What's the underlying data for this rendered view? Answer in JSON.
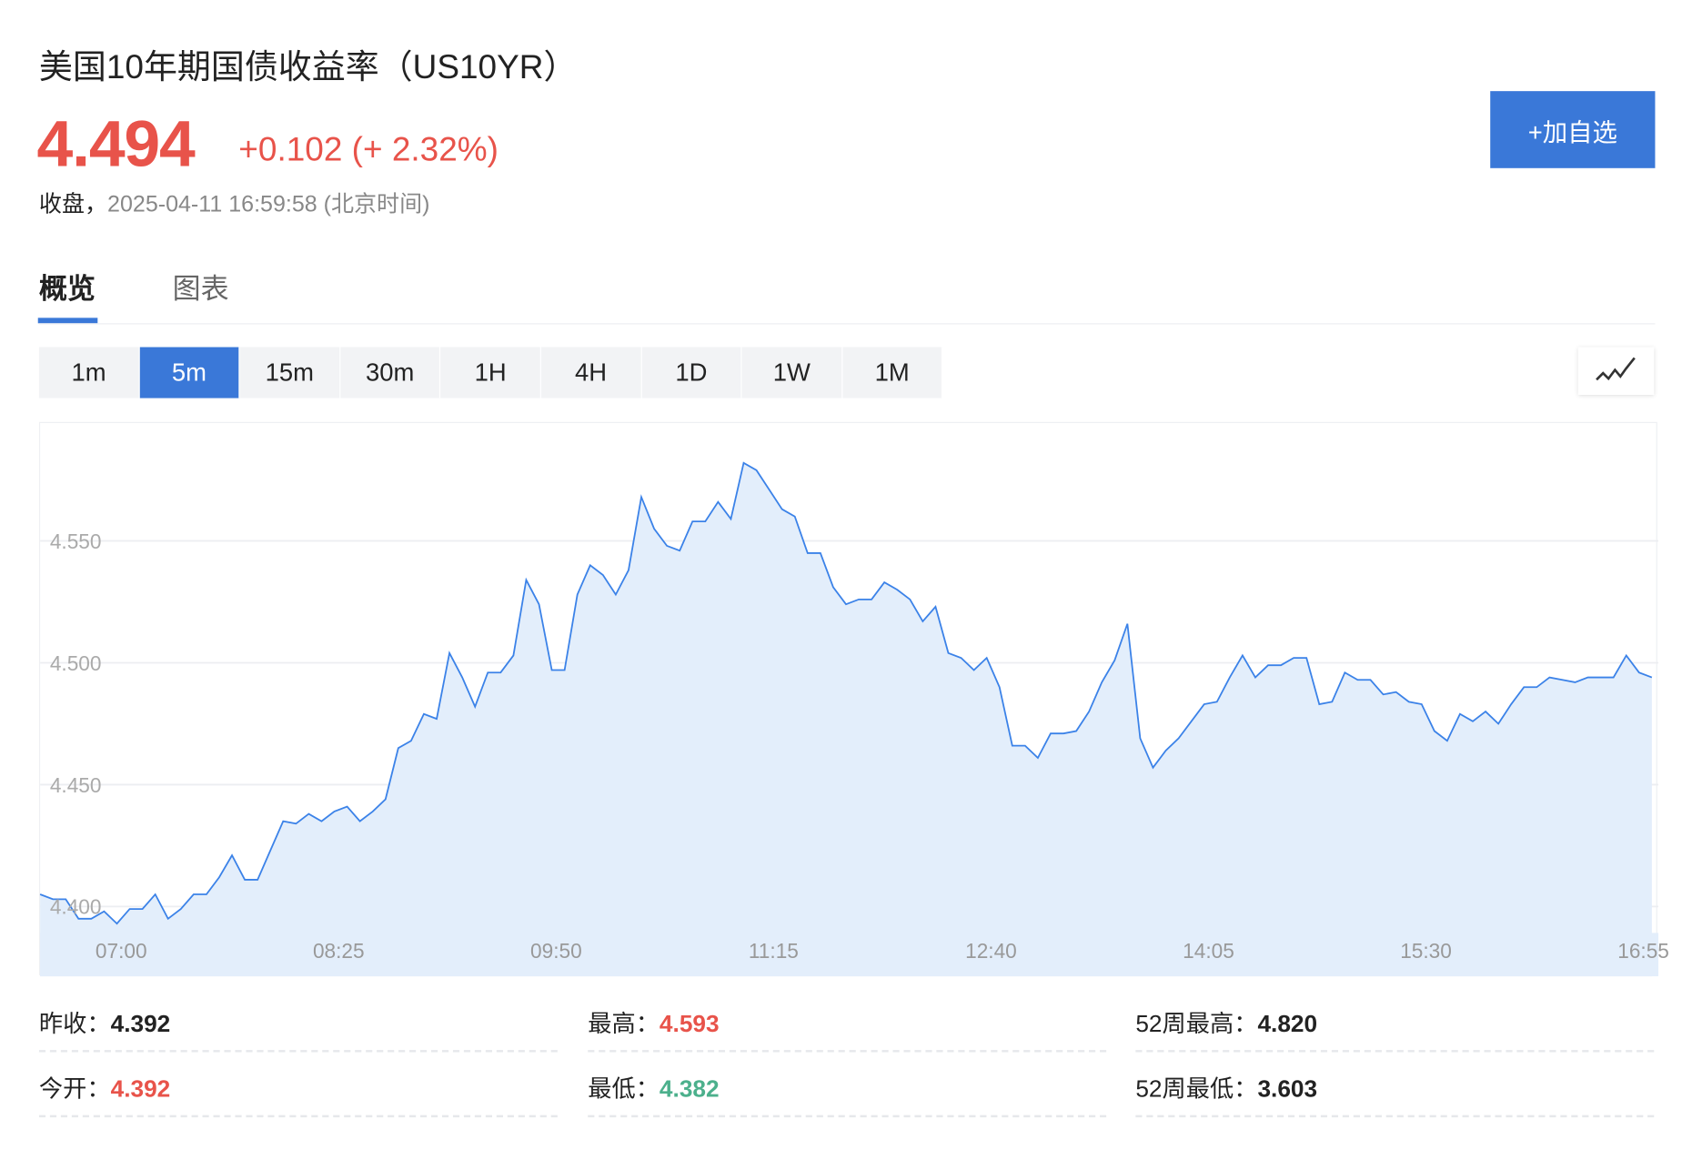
{
  "header": {
    "title": "美国10年期国债收益率（US10YR）",
    "price": "4.494",
    "change": "+0.102 (+ 2.32%)",
    "status": "收盘，",
    "timestamp": "2025-04-11 16:59:58 (北京时间)",
    "watch_button": "+加自选"
  },
  "colors": {
    "up": "#e8534a",
    "down": "#4cb08c",
    "accent": "#3a78d8",
    "line": "#3b82e8",
    "fill": "#e3eefb"
  },
  "tabs": [
    {
      "label": "概览",
      "active": true
    },
    {
      "label": "图表",
      "active": false
    }
  ],
  "intervals": [
    {
      "label": "1m"
    },
    {
      "label": "5m",
      "active": true
    },
    {
      "label": "15m"
    },
    {
      "label": "30m"
    },
    {
      "label": "1H"
    },
    {
      "label": "4H"
    },
    {
      "label": "1D"
    },
    {
      "label": "1W"
    },
    {
      "label": "1M"
    }
  ],
  "chart_type_icon": "line-chart-icon",
  "chart_data": {
    "type": "area",
    "interval_minutes": 5,
    "x_start": "06:30",
    "x_ticks": [
      "07:00",
      "08:25",
      "09:50",
      "11:15",
      "12:40",
      "14:05",
      "15:30",
      "16:55"
    ],
    "y_ticks": [
      "4.400",
      "4.450",
      "4.500",
      "4.550"
    ],
    "grid": true,
    "values": [
      4.405,
      4.403,
      4.403,
      4.395,
      4.395,
      4.398,
      4.393,
      4.399,
      4.399,
      4.405,
      4.395,
      4.399,
      4.405,
      4.405,
      4.412,
      4.421,
      4.411,
      4.411,
      4.423,
      4.435,
      4.434,
      4.438,
      4.435,
      4.439,
      4.441,
      4.435,
      4.439,
      4.444,
      4.465,
      4.468,
      4.479,
      4.477,
      4.504,
      4.494,
      4.482,
      4.496,
      4.496,
      4.503,
      4.534,
      4.524,
      4.497,
      4.497,
      4.528,
      4.54,
      4.536,
      4.528,
      4.538,
      4.568,
      4.555,
      4.548,
      4.546,
      4.558,
      4.558,
      4.566,
      4.559,
      4.582,
      4.579,
      4.571,
      4.563,
      4.56,
      4.545,
      4.545,
      4.531,
      4.524,
      4.526,
      4.526,
      4.533,
      4.53,
      4.526,
      4.517,
      4.523,
      4.504,
      4.502,
      4.497,
      4.502,
      4.49,
      4.466,
      4.466,
      4.461,
      4.471,
      4.471,
      4.472,
      4.48,
      4.492,
      4.501,
      4.516,
      4.469,
      4.457,
      4.464,
      4.469,
      4.476,
      4.483,
      4.484,
      4.494,
      4.503,
      4.494,
      4.499,
      4.499,
      4.502,
      4.502,
      4.483,
      4.484,
      4.496,
      4.493,
      4.493,
      4.487,
      4.488,
      4.484,
      4.483,
      4.472,
      4.468,
      4.479,
      4.476,
      4.48,
      4.475,
      4.483,
      4.49,
      4.49,
      4.494,
      4.493,
      4.492,
      4.494,
      4.494,
      4.494,
      4.503,
      4.496,
      4.494
    ]
  },
  "stats": [
    {
      "label": "昨收：",
      "value": "4.392",
      "color": "#222222"
    },
    {
      "label": "最高：",
      "value": "4.593",
      "color": "#e8534a"
    },
    {
      "label": "52周最高：",
      "value": "4.820",
      "color": "#222222"
    },
    {
      "label": "今开：",
      "value": "4.392",
      "color": "#e8534a"
    },
    {
      "label": "最低：",
      "value": "4.382",
      "color": "#4cb08c"
    },
    {
      "label": "52周最低：",
      "value": "3.603",
      "color": "#222222"
    }
  ]
}
